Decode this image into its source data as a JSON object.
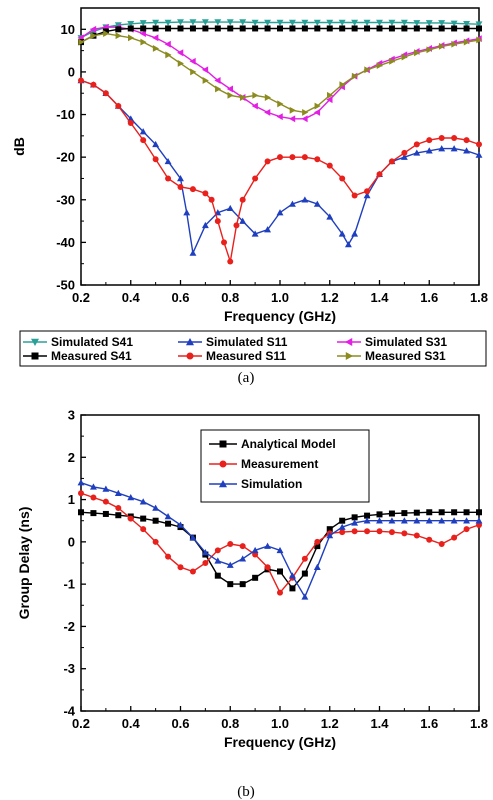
{
  "chart_data": [
    {
      "type": "line",
      "caption": "(a)",
      "xlabel": "Frequency (GHz)",
      "ylabel": "dB",
      "xlim": [
        0.2,
        1.8
      ],
      "ylim": [
        -50,
        15
      ],
      "xticks": [
        0.2,
        0.4,
        0.6,
        0.8,
        1.0,
        1.2,
        1.4,
        1.6,
        1.8
      ],
      "xtick_labels": [
        "0.2",
        "0.4",
        "0.6",
        "0.8",
        "1.0",
        "1.2",
        "1.4",
        "1.6",
        "1.8"
      ],
      "yticks": [
        -50,
        -40,
        -30,
        -20,
        -10,
        0,
        10
      ],
      "ytick_labels": [
        "-50",
        "-40",
        "-30",
        "-20",
        "-10",
        "0",
        "10"
      ],
      "legend_position": "bottom",
      "series": [
        {
          "name": "Simulated S41",
          "color": "#2aa198",
          "marker": "triangle-down",
          "x": [
            0.2,
            0.25,
            0.3,
            0.35,
            0.4,
            0.45,
            0.5,
            0.55,
            0.6,
            0.65,
            0.7,
            0.75,
            0.8,
            0.85,
            0.9,
            0.95,
            1.0,
            1.05,
            1.1,
            1.15,
            1.2,
            1.25,
            1.3,
            1.35,
            1.4,
            1.45,
            1.5,
            1.55,
            1.6,
            1.65,
            1.7,
            1.75,
            1.8
          ],
          "y": [
            8,
            9.5,
            10.5,
            11,
            11.3,
            11.5,
            11.6,
            11.6,
            11.7,
            11.7,
            11.7,
            11.7,
            11.7,
            11.7,
            11.6,
            11.6,
            11.6,
            11.6,
            11.6,
            11.6,
            11.6,
            11.6,
            11.6,
            11.6,
            11.6,
            11.6,
            11.6,
            11.5,
            11.5,
            11.5,
            11.4,
            11.3,
            11.2
          ]
        },
        {
          "name": "Simulated S11",
          "color": "#1f3fbf",
          "marker": "triangle-up",
          "x": [
            0.2,
            0.25,
            0.3,
            0.35,
            0.4,
            0.45,
            0.5,
            0.55,
            0.6,
            0.625,
            0.65,
            0.7,
            0.75,
            0.8,
            0.85,
            0.9,
            0.95,
            1.0,
            1.05,
            1.1,
            1.15,
            1.2,
            1.25,
            1.275,
            1.3,
            1.35,
            1.4,
            1.45,
            1.5,
            1.55,
            1.6,
            1.65,
            1.7,
            1.75,
            1.8
          ],
          "y": [
            -2,
            -3,
            -5,
            -8,
            -11,
            -14,
            -17,
            -21,
            -25,
            -33,
            -42.5,
            -36,
            -33,
            -32,
            -35,
            -38,
            -37,
            -33,
            -31,
            -30,
            -31,
            -34,
            -38,
            -40.5,
            -38,
            -29,
            -24,
            -21,
            -20,
            -19,
            -18.5,
            -18,
            -18,
            -18.5,
            -19.5
          ]
        },
        {
          "name": "Simulated S31",
          "color": "#e21fe2",
          "marker": "triangle-left",
          "x": [
            0.2,
            0.25,
            0.3,
            0.35,
            0.4,
            0.45,
            0.5,
            0.55,
            0.6,
            0.65,
            0.7,
            0.75,
            0.8,
            0.85,
            0.9,
            0.95,
            1.0,
            1.05,
            1.1,
            1.15,
            1.2,
            1.25,
            1.3,
            1.35,
            1.4,
            1.45,
            1.5,
            1.55,
            1.6,
            1.65,
            1.7,
            1.75,
            1.8
          ],
          "y": [
            8,
            10,
            10.5,
            10.5,
            10,
            9,
            8,
            6.5,
            4.5,
            2.5,
            0.5,
            -2,
            -4,
            -6,
            -8,
            -9.5,
            -10.5,
            -11,
            -11,
            -9.5,
            -6.5,
            -3.5,
            -1,
            0.5,
            2,
            3,
            4,
            4.8,
            5.5,
            6.2,
            6.8,
            7.3,
            7.8
          ]
        },
        {
          "name": "Measured S41",
          "color": "#000000",
          "marker": "square",
          "x": [
            0.2,
            0.25,
            0.3,
            0.35,
            0.4,
            0.45,
            0.5,
            0.55,
            0.6,
            0.65,
            0.7,
            0.75,
            0.8,
            0.85,
            0.9,
            0.95,
            1.0,
            1.05,
            1.1,
            1.15,
            1.2,
            1.25,
            1.3,
            1.35,
            1.4,
            1.45,
            1.5,
            1.55,
            1.6,
            1.65,
            1.7,
            1.75,
            1.8
          ],
          "y": [
            7,
            8.5,
            9.5,
            10,
            10.2,
            10.2,
            10.2,
            10.2,
            10.2,
            10.2,
            10.2,
            10.2,
            10.2,
            10.2,
            10.2,
            10.2,
            10.2,
            10.2,
            10.2,
            10.2,
            10.2,
            10.2,
            10.2,
            10.2,
            10.2,
            10.2,
            10.2,
            10.2,
            10.2,
            10.2,
            10.2,
            10.2,
            10.2
          ]
        },
        {
          "name": "Measured S11",
          "color": "#e8211d",
          "marker": "circle",
          "x": [
            0.2,
            0.25,
            0.3,
            0.35,
            0.4,
            0.45,
            0.5,
            0.55,
            0.6,
            0.65,
            0.7,
            0.725,
            0.75,
            0.775,
            0.8,
            0.825,
            0.85,
            0.9,
            0.95,
            1.0,
            1.05,
            1.1,
            1.15,
            1.2,
            1.25,
            1.3,
            1.35,
            1.4,
            1.45,
            1.5,
            1.55,
            1.6,
            1.65,
            1.7,
            1.75,
            1.8
          ],
          "y": [
            -2,
            -3,
            -5,
            -8,
            -12,
            -16,
            -20.5,
            -25,
            -27,
            -27.5,
            -28.5,
            -30,
            -35,
            -40,
            -44.5,
            -36,
            -30,
            -25,
            -21,
            -20,
            -20,
            -20,
            -20.5,
            -22,
            -25,
            -29,
            -28,
            -24,
            -21,
            -19,
            -17,
            -16,
            -15.5,
            -15.5,
            -16,
            -17
          ]
        },
        {
          "name": "Measured S31",
          "color": "#8b8b1f",
          "marker": "triangle-right",
          "x": [
            0.2,
            0.25,
            0.3,
            0.35,
            0.4,
            0.45,
            0.5,
            0.55,
            0.6,
            0.65,
            0.7,
            0.75,
            0.8,
            0.85,
            0.9,
            0.95,
            1.0,
            1.05,
            1.1,
            1.15,
            1.2,
            1.25,
            1.3,
            1.35,
            1.4,
            1.45,
            1.5,
            1.55,
            1.6,
            1.65,
            1.7,
            1.75,
            1.8
          ],
          "y": [
            7,
            8.5,
            9,
            8.5,
            8,
            7,
            5.5,
            4,
            2,
            0,
            -2,
            -4,
            -5.5,
            -6,
            -5.5,
            -6,
            -7.5,
            -9,
            -9.5,
            -8,
            -5.5,
            -3,
            -1,
            0.5,
            1.5,
            2.5,
            3.5,
            4.5,
            5.2,
            6,
            6.5,
            7,
            7.5
          ]
        }
      ]
    },
    {
      "type": "line",
      "caption": "(b)",
      "xlabel": "Frequency (GHz)",
      "ylabel": "Group Delay (ns)",
      "xlim": [
        0.2,
        1.8
      ],
      "ylim": [
        -4,
        3
      ],
      "xticks": [
        0.2,
        0.4,
        0.6,
        0.8,
        1.0,
        1.2,
        1.4,
        1.6,
        1.8
      ],
      "xtick_labels": [
        "0.2",
        "0.4",
        "0.6",
        "0.8",
        "1.0",
        "1.2",
        "1.4",
        "1.6",
        "1.8"
      ],
      "yticks": [
        -4,
        -3,
        -2,
        -1,
        0,
        1,
        2,
        3
      ],
      "ytick_labels": [
        "-4",
        "-3",
        "-2",
        "-1",
        "0",
        "1",
        "2",
        "3"
      ],
      "legend_position": "top-right",
      "series": [
        {
          "name": "Analytical Model",
          "color": "#000000",
          "marker": "square",
          "x": [
            0.2,
            0.25,
            0.3,
            0.35,
            0.4,
            0.45,
            0.5,
            0.55,
            0.6,
            0.65,
            0.7,
            0.75,
            0.8,
            0.85,
            0.9,
            0.95,
            1.0,
            1.05,
            1.1,
            1.15,
            1.2,
            1.25,
            1.3,
            1.35,
            1.4,
            1.45,
            1.5,
            1.55,
            1.6,
            1.65,
            1.7,
            1.75,
            1.8
          ],
          "y": [
            0.7,
            0.68,
            0.66,
            0.63,
            0.6,
            0.55,
            0.5,
            0.43,
            0.35,
            0.1,
            -0.3,
            -0.8,
            -1.0,
            -1.0,
            -0.85,
            -0.65,
            -0.7,
            -1.1,
            -0.75,
            -0.1,
            0.3,
            0.5,
            0.58,
            0.62,
            0.65,
            0.67,
            0.68,
            0.69,
            0.7,
            0.7,
            0.7,
            0.7,
            0.7
          ]
        },
        {
          "name": "Measurement",
          "color": "#e8211d",
          "marker": "circle",
          "x": [
            0.2,
            0.25,
            0.3,
            0.35,
            0.4,
            0.45,
            0.5,
            0.55,
            0.6,
            0.65,
            0.7,
            0.75,
            0.8,
            0.85,
            0.9,
            0.95,
            1.0,
            1.05,
            1.1,
            1.15,
            1.2,
            1.25,
            1.3,
            1.35,
            1.4,
            1.45,
            1.5,
            1.55,
            1.6,
            1.65,
            1.7,
            1.75,
            1.8
          ],
          "y": [
            1.15,
            1.05,
            0.95,
            0.8,
            0.55,
            0.3,
            0.0,
            -0.35,
            -0.6,
            -0.7,
            -0.5,
            -0.2,
            -0.05,
            -0.1,
            -0.3,
            -0.6,
            -1.2,
            -0.85,
            -0.4,
            0.0,
            0.2,
            0.23,
            0.25,
            0.25,
            0.25,
            0.23,
            0.2,
            0.15,
            0.05,
            -0.05,
            0.1,
            0.3,
            0.4
          ]
        },
        {
          "name": "Simulation",
          "color": "#1f3fbf",
          "marker": "triangle-up",
          "x": [
            0.2,
            0.25,
            0.3,
            0.35,
            0.4,
            0.45,
            0.5,
            0.55,
            0.6,
            0.65,
            0.7,
            0.75,
            0.8,
            0.85,
            0.9,
            0.95,
            1.0,
            1.05,
            1.1,
            1.15,
            1.2,
            1.25,
            1.3,
            1.35,
            1.4,
            1.45,
            1.5,
            1.55,
            1.6,
            1.65,
            1.7,
            1.75,
            1.8
          ],
          "y": [
            1.4,
            1.3,
            1.25,
            1.15,
            1.05,
            0.95,
            0.8,
            0.6,
            0.4,
            0.1,
            -0.25,
            -0.45,
            -0.55,
            -0.4,
            -0.2,
            -0.1,
            -0.2,
            -0.8,
            -1.3,
            -0.6,
            0.15,
            0.35,
            0.45,
            0.5,
            0.5,
            0.5,
            0.5,
            0.5,
            0.5,
            0.5,
            0.5,
            0.5,
            0.5
          ]
        }
      ]
    }
  ]
}
